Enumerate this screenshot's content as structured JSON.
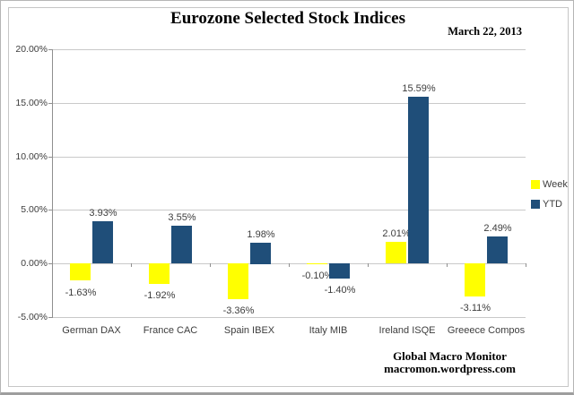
{
  "header": {
    "title": "Eurozone Selected Stock Indices",
    "date": "March 22, 2013"
  },
  "footer": {
    "line1": "Global Macro Monitor",
    "line2": "macromon.wordpress.com"
  },
  "colors": {
    "week_bar": "#FFFF00",
    "ytd_bar": "#1F4E79",
    "gridline": "#C9C9C9",
    "axis": "#8F8F8F",
    "label_text": "#3D3D3D",
    "title_text": "#000000",
    "background": "#FFFFFF"
  },
  "chart_data": {
    "type": "bar",
    "title": "Eurozone Selected Stock Indices",
    "date_annotation": "March 22, 2013",
    "categories": [
      "German DAX",
      "France CAC",
      "Spain IBEX",
      "Italy MIB",
      "Ireland ISQE",
      "Greeece Compos"
    ],
    "series": [
      {
        "name": "Week",
        "color": "#FFFF00",
        "values": [
          -1.63,
          -1.92,
          -3.36,
          -0.1,
          2.01,
          -3.11
        ],
        "labels": [
          "-1.63%",
          "-1.92%",
          "-3.36%",
          "-0.10%",
          "2.01%",
          "-3.11%"
        ]
      },
      {
        "name": "YTD",
        "color": "#1F4E79",
        "values": [
          3.93,
          3.55,
          1.98,
          -1.4,
          15.59,
          2.49
        ],
        "labels": [
          "3.93%",
          "3.55%",
          "1.98%",
          "-1.40%",
          "15.59%",
          "2.49%"
        ]
      }
    ],
    "y_axis": {
      "min": -5,
      "max": 20,
      "step": 5,
      "tick_labels": [
        "20.00%",
        "15.00%",
        "10.00%",
        "5.00%",
        "0.00%",
        "-5.00%"
      ]
    },
    "grid": true,
    "legend_position": "right",
    "data_labels": true
  }
}
